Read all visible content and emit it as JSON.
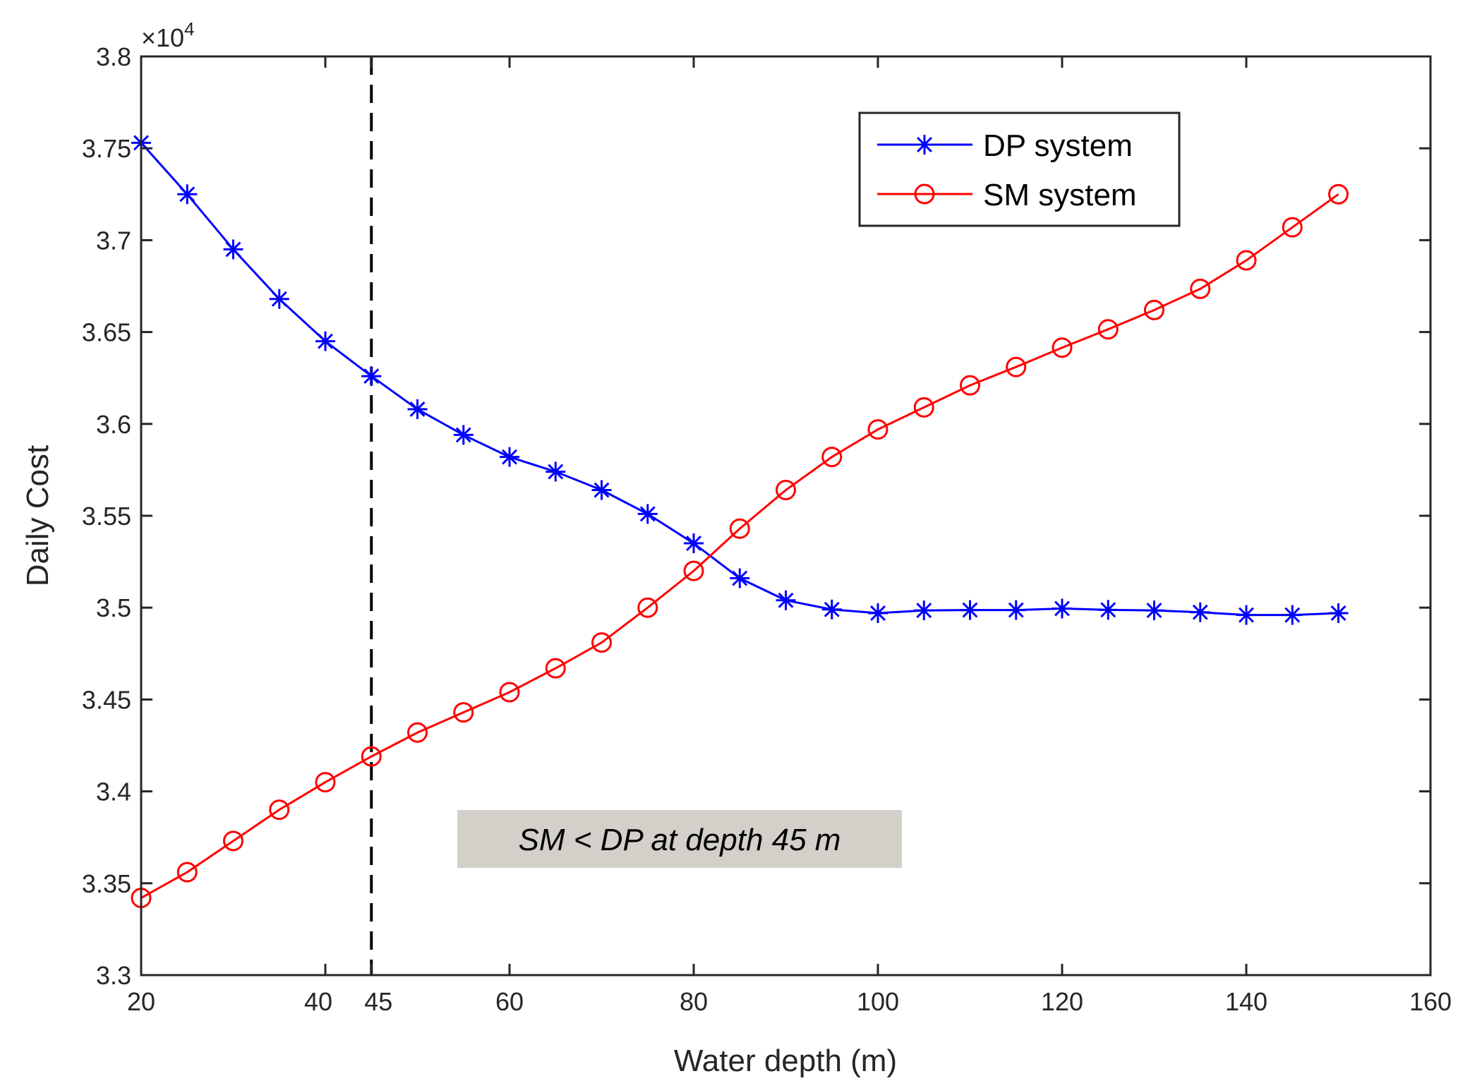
{
  "chart_data": {
    "type": "line",
    "title": "",
    "xlabel": "Water depth (m)",
    "ylabel": "Daily Cost",
    "y_exponent_label": "×10",
    "y_exponent_power": "4",
    "xlim": [
      20,
      160
    ],
    "ylim": [
      33000,
      38000
    ],
    "x_ticks": [
      20,
      40,
      45,
      60,
      80,
      100,
      120,
      140,
      160
    ],
    "y_ticks": [
      33000,
      33500,
      34000,
      34500,
      35000,
      35500,
      36000,
      36500,
      37000,
      37500,
      38000
    ],
    "y_tick_labels": [
      "3.3",
      "3.35",
      "3.4",
      "3.45",
      "3.5",
      "3.55",
      "3.6",
      "3.65",
      "3.7",
      "3.75",
      "3.8"
    ],
    "x": [
      20,
      25,
      30,
      35,
      40,
      45,
      50,
      55,
      60,
      65,
      70,
      75,
      80,
      85,
      90,
      95,
      100,
      105,
      110,
      115,
      120,
      125,
      130,
      135,
      140,
      145,
      150
    ],
    "series": [
      {
        "name": "DP system",
        "color": "#0000ff",
        "marker": "asterisk",
        "values": [
          37530,
          37250,
          36950,
          36680,
          36450,
          36260,
          36080,
          35940,
          35820,
          35740,
          35640,
          35510,
          35350,
          35160,
          35040,
          34990,
          34970,
          34985,
          34987,
          34987,
          34995,
          34988,
          34985,
          34975,
          34960,
          34960,
          34970
        ]
      },
      {
        "name": "SM system",
        "color": "#ff0000",
        "marker": "circle",
        "values": [
          33420,
          33560,
          33730,
          33900,
          34050,
          34190,
          34320,
          34430,
          34540,
          34670,
          34810,
          35000,
          35200,
          35430,
          35640,
          35820,
          35970,
          36090,
          36210,
          36310,
          36415,
          36515,
          36620,
          36735,
          36890,
          37070,
          37250
        ]
      }
    ],
    "reference_line": {
      "x": 45,
      "style": "dashed",
      "color": "#000000"
    },
    "annotation": {
      "text": "SM < DP at depth 45 m",
      "background": "#d3d0ca"
    },
    "legend": {
      "position": "top-right"
    },
    "grid": false
  }
}
